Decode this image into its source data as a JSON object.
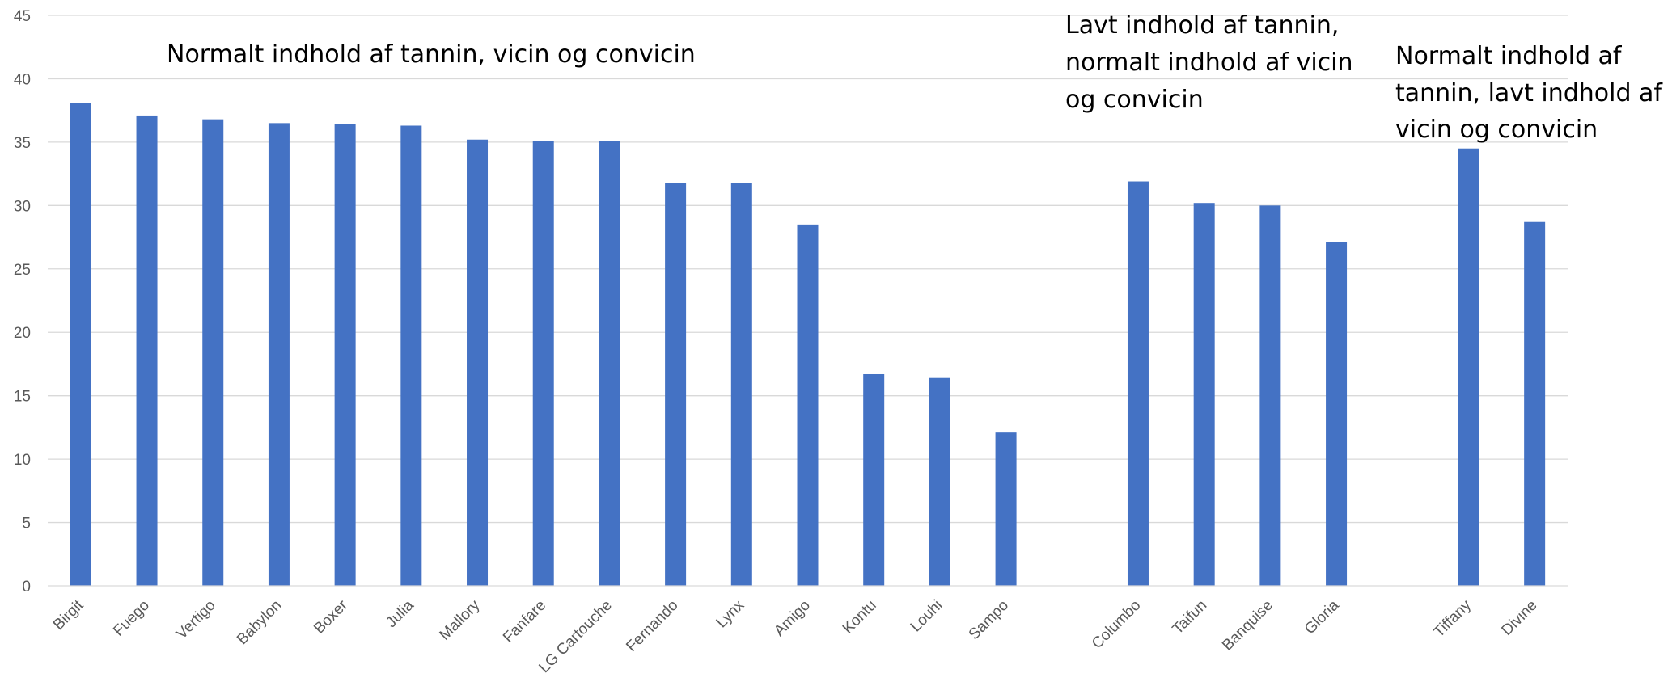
{
  "chart_data": {
    "type": "bar",
    "title": "",
    "xlabel": "",
    "ylabel": "",
    "ylim": [
      0,
      45
    ],
    "yticks": [
      0,
      5,
      10,
      15,
      20,
      25,
      30,
      35,
      40,
      45
    ],
    "grid": true,
    "legend": "none",
    "bar_color": "#4472C4",
    "categories": [
      "Birgit",
      "Fuego",
      "Vertigo",
      "Babylon",
      "Boxer",
      "Julia",
      "Mallory",
      "Fanfare",
      "LG Cartouche",
      "Fernando",
      "Lynx",
      "Amigo",
      "Kontu",
      "Louhi",
      "Sampo",
      "",
      "Columbo",
      "Taifun",
      "Banquise",
      "Gloria",
      "",
      "Tiffany",
      "Divine"
    ],
    "values": [
      38.1,
      37.1,
      36.8,
      36.5,
      36.4,
      36.3,
      35.2,
      35.1,
      35.1,
      31.8,
      31.8,
      28.5,
      16.7,
      16.4,
      12.1,
      null,
      31.9,
      30.2,
      30.0,
      27.1,
      null,
      34.5,
      28.7
    ],
    "annotations": [
      {
        "lines": [
          "Normalt indhold af tannin, vicin og convicin"
        ]
      },
      {
        "lines": [
          "Lavt indhold af tannin,",
          "normalt indhold af vicin",
          "og convicin"
        ]
      },
      {
        "lines": [
          "Normalt indhold af",
          "tannin, lavt indhold af",
          "vicin og convicin"
        ]
      }
    ]
  }
}
